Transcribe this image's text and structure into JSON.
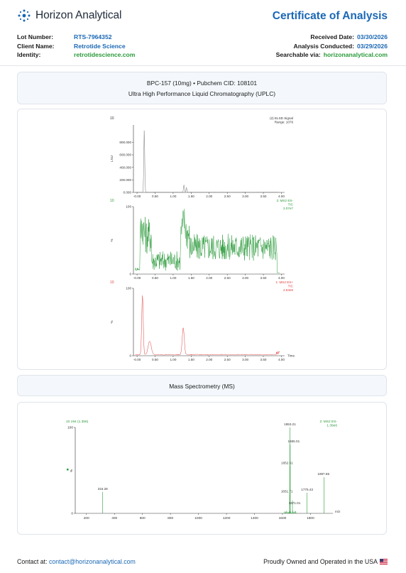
{
  "header": {
    "brand": "Horizon Analytical",
    "title": "Certificate of Analysis",
    "lot_label": "Lot Number:",
    "lot_value": "RTS-7964352",
    "client_label": "Client Name:",
    "client_value": "Retrotide Science",
    "identity_label": "Identity:",
    "identity_value": "retrotidescience.com",
    "received_label": "Received Date:",
    "received_value": "03/30/2026",
    "analysis_label": "Analysis Conducted:",
    "analysis_value": "03/29/2026",
    "search_label": "Searchable via:",
    "search_value": "horizonanalytical.com"
  },
  "sample": {
    "line1": "BPC-157 (10mg) • Pubchem CID: 108101",
    "line2": "Ultra High Performance Liquid Chromatography (UPLC)"
  },
  "ms_section": {
    "title": "Mass Spectrometry (MS)"
  },
  "footer": {
    "contact_label": "Contact at:",
    "contact_email": "contact@horizonanalytical.com",
    "made_in": "Proudly Owned and Operated in the USA"
  },
  "colors": {
    "accent": "#1a67b5",
    "green": "#2a9a3a",
    "red": "#e04040",
    "gray": "#777777"
  },
  "chart_data": [
    {
      "type": "line",
      "panel": "chromatogram-elsd",
      "corner_label": "10",
      "legend": [
        "(2) ELSD Signal",
        "Range: 1076"
      ],
      "ylabel": "LSU",
      "x_ticks": [
        "-0.00",
        "0.50",
        "1.00",
        "1.50",
        "2.00",
        "2.50",
        "3.00",
        "3.50",
        "4.00"
      ],
      "y_ticks": [
        "0.000",
        "200.000",
        "400.000",
        "600.000",
        "800.000"
      ],
      "xlim": [
        -0.1,
        4.05
      ],
      "ylim": [
        0,
        1076
      ],
      "peaks": [
        {
          "x": 0.2,
          "y": 1000
        },
        {
          "x": 1.3,
          "y": 120
        },
        {
          "x": 1.36,
          "y": 80
        }
      ]
    },
    {
      "type": "line",
      "panel": "chromatogram-ms2-es-minus",
      "corner_label": "10",
      "legend": [
        "2: MS2 ES-",
        "TIC",
        "2.07e7"
      ],
      "ylabel": "%",
      "x_ticks": [
        "-0.00",
        "0.50",
        "1.00",
        "1.50",
        "2.00",
        "2.50",
        "3.00",
        "3.50",
        "4.00"
      ],
      "y_ticks": [
        "0",
        "100"
      ],
      "xlim": [
        -0.1,
        4.05
      ],
      "ylim": [
        0,
        100
      ]
    },
    {
      "type": "line",
      "panel": "chromatogram-ms2-es-plus",
      "corner_label": "10",
      "legend": [
        "1: MS2 ES+",
        "TIC",
        "2.53e9"
      ],
      "ylabel": "%",
      "xlabel": "Time",
      "x_ticks": [
        "-0.00",
        "0.50",
        "1.00",
        "1.50",
        "2.00",
        "2.50",
        "3.00",
        "3.50",
        "4.00"
      ],
      "y_ticks": [
        "0",
        "100"
      ],
      "xlim": [
        -0.1,
        4.05
      ],
      "ylim": [
        0,
        100
      ]
    },
    {
      "type": "bar",
      "panel": "mass-spectrum",
      "corner_label": "10 194 (1.356)",
      "legend": [
        "2: MS2 ES-",
        "1.39e6"
      ],
      "ylabel": "%",
      "xlabel": "m/z",
      "x_ticks": [
        "200",
        "400",
        "600",
        "800",
        "1000",
        "1200",
        "1400",
        "1600",
        "1800"
      ],
      "y_ticks": [
        "0",
        "100"
      ],
      "xlim": [
        120,
        1960
      ],
      "ylim": [
        0,
        100
      ],
      "peaks": [
        {
          "mz": 316.28,
          "label": "316.28",
          "y": 25
        },
        {
          "mz": 1651.71,
          "label": "1651.71",
          "y": 22
        },
        {
          "mz": 1652.51,
          "label": "1652.51",
          "y": 55
        },
        {
          "mz": 1653.21,
          "label": "1653.21",
          "y": 100
        },
        {
          "mz": 1655.01,
          "label": "1655.01",
          "y": 80
        },
        {
          "mz": 1671.01,
          "label": "1671.01",
          "y": 15
        },
        {
          "mz": 1775.43,
          "label": "1775.43",
          "y": 24
        },
        {
          "mz": 1897.65,
          "label": "1897.65",
          "y": 42
        }
      ]
    }
  ]
}
